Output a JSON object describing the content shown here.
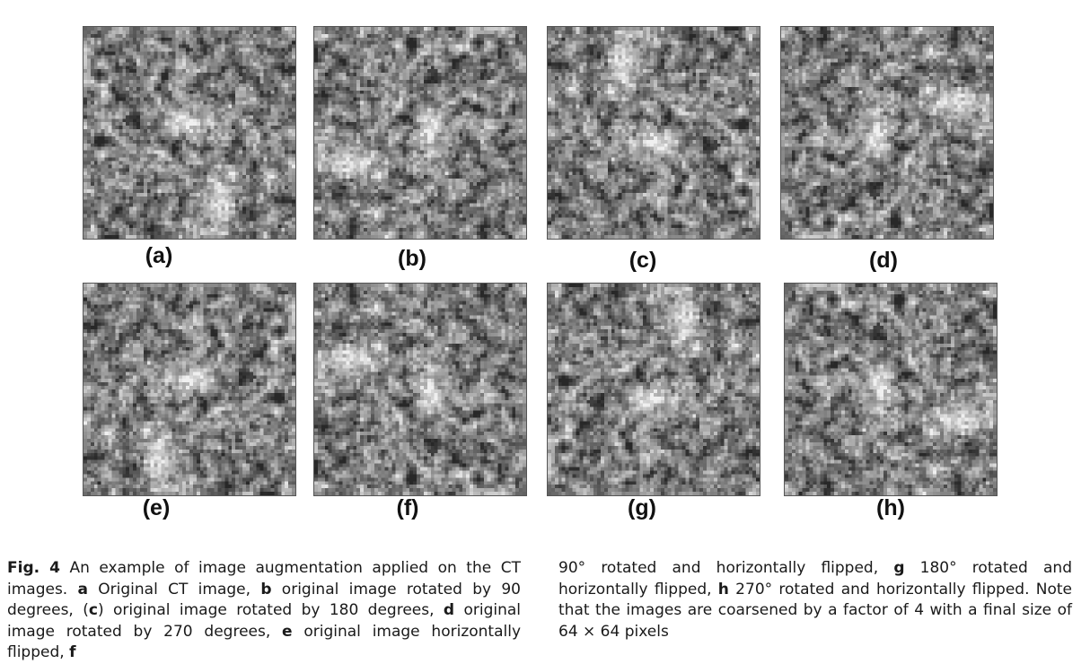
{
  "figure": {
    "panels": [
      {
        "label": "(a)",
        "transform": "original"
      },
      {
        "label": "(b)",
        "transform": "rot90"
      },
      {
        "label": "(c)",
        "transform": "rot180"
      },
      {
        "label": "(d)",
        "transform": "rot270"
      },
      {
        "label": "(e)",
        "transform": "flip"
      },
      {
        "label": "(f)",
        "transform": "rot90-flip"
      },
      {
        "label": "(g)",
        "transform": "rot180-flip"
      },
      {
        "label": "(h)",
        "transform": "rot270-flip"
      }
    ]
  },
  "caption": {
    "fig_label": "Fig. 4",
    "part1": " An example of image augmentation applied on the CT images. ",
    "a": "a",
    "part2": " Original CT image, ",
    "b": "b",
    "part3": " original image rotated by 90 degrees, (",
    "c": "c",
    "part4": ") original image rotated by 180 degrees, ",
    "d": "d",
    "part5": " original image rotated by 270 degrees, ",
    "e": "e",
    "part6": " original image horizontally flipped, ",
    "f": "f",
    "part7": "90° rotated and horizontally flipped, ",
    "g": "g",
    "part8": " 180° rotated and horizontally flipped, ",
    "h": "h",
    "part9": " 270° rotated and horizontally flipped. Note that the images are coarsened by a factor of 4 with a final size of 64 × 64 pixels"
  }
}
